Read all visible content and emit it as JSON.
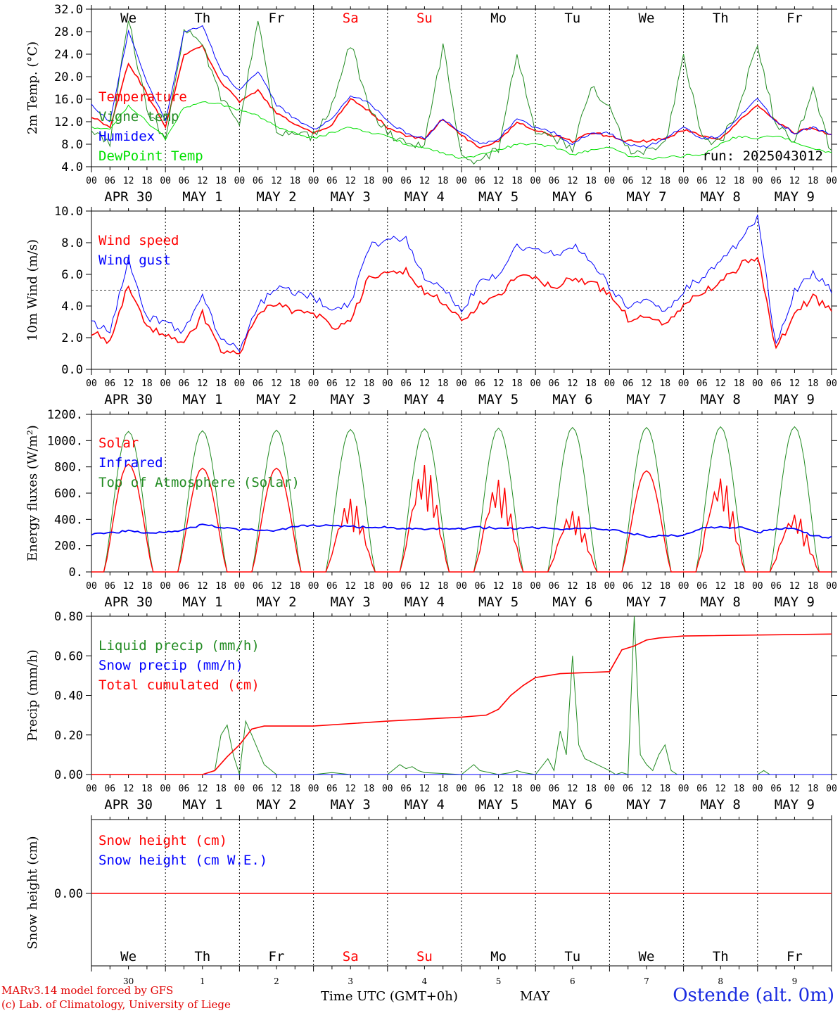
{
  "chart_data": [
    {
      "type": "line",
      "ylabel": "2m Temp. (°C)",
      "ylim": [
        4.0,
        32.0
      ],
      "yticks": [
        "4.0",
        "8.0",
        "12.0",
        "16.0",
        "20.0",
        "24.0",
        "28.0",
        "32.0"
      ],
      "run_label": "run: 2025043012",
      "x_hours": [
        0,
        6,
        12,
        18,
        24,
        30,
        36,
        42,
        48,
        54,
        60,
        66,
        72,
        78,
        84,
        90,
        96,
        102,
        108,
        114,
        120,
        126,
        132,
        138,
        144,
        150,
        156,
        162,
        168,
        174,
        180,
        186,
        192,
        198,
        204,
        210,
        216,
        222,
        228,
        234,
        240
      ],
      "series": [
        {
          "name": "Temperature",
          "color": "#ff0000",
          "values": [
            13.0,
            11.0,
            22.5,
            17.0,
            11.0,
            24.0,
            25.5,
            19.0,
            15.5,
            17.5,
            13.5,
            11.5,
            10.0,
            11.5,
            16.0,
            14.0,
            11.0,
            9.5,
            9.0,
            12.5,
            9.5,
            7.5,
            8.5,
            12.0,
            10.5,
            9.5,
            8.5,
            10.0,
            9.5,
            8.5,
            8.5,
            9.0,
            10.5,
            9.5,
            9.0,
            12.0,
            15.0,
            12.0,
            10.0,
            11.0,
            9.5
          ]
        },
        {
          "name": "Vigne temp",
          "color": "#228b22",
          "values": [
            10.0,
            8.5,
            30.0,
            14.0,
            9.0,
            28.0,
            26.0,
            16.0,
            12.0,
            30.0,
            10.0,
            9.5,
            9.5,
            15.0,
            26.0,
            14.0,
            10.0,
            8.5,
            8.0,
            25.5,
            6.0,
            5.0,
            7.0,
            24.0,
            10.0,
            9.0,
            7.5,
            18.0,
            15.0,
            7.0,
            6.5,
            8.0,
            24.0,
            9.0,
            8.0,
            15.0,
            26.0,
            11.0,
            8.5,
            18.0,
            6.0
          ]
        },
        {
          "name": "Humidex",
          "color": "#0000ff",
          "values": [
            15.0,
            12.0,
            28.0,
            19.0,
            12.0,
            28.0,
            29.0,
            21.0,
            17.5,
            21.0,
            15.0,
            12.5,
            10.5,
            12.5,
            16.5,
            15.5,
            12.0,
            10.0,
            9.0,
            12.5,
            10.0,
            8.0,
            9.0,
            12.5,
            11.0,
            10.0,
            8.0,
            10.0,
            10.0,
            8.0,
            7.5,
            9.0,
            11.0,
            9.0,
            9.5,
            13.0,
            16.0,
            12.0,
            10.0,
            11.0,
            9.5
          ]
        },
        {
          "name": "DewPoint Temp",
          "color": "#00e000",
          "values": [
            11.0,
            10.5,
            15.0,
            12.0,
            9.0,
            14.5,
            15.5,
            15.0,
            14.0,
            13.0,
            11.0,
            10.0,
            9.0,
            10.0,
            11.0,
            10.0,
            9.5,
            8.0,
            7.5,
            6.5,
            5.5,
            6.0,
            7.0,
            8.0,
            8.0,
            7.5,
            6.0,
            7.0,
            7.5,
            6.0,
            5.5,
            5.5,
            6.0,
            6.0,
            8.0,
            9.5,
            9.0,
            9.5,
            8.5,
            7.0,
            6.5
          ]
        }
      ]
    },
    {
      "type": "line",
      "ylabel": "10m Wind (m/s)",
      "ylim": [
        0.0,
        10.0
      ],
      "yticks": [
        "0.0",
        "2.0",
        "4.0",
        "6.0",
        "8.0",
        "10.0"
      ],
      "reference_line": 5.0,
      "x_hours": [
        0,
        6,
        12,
        18,
        24,
        30,
        36,
        42,
        48,
        54,
        60,
        66,
        72,
        78,
        84,
        90,
        96,
        102,
        108,
        114,
        120,
        126,
        132,
        138,
        144,
        150,
        156,
        162,
        168,
        174,
        180,
        186,
        192,
        198,
        204,
        210,
        216,
        222,
        228,
        234,
        240
      ],
      "series": [
        {
          "name": "Wind speed",
          "color": "#ff0000",
          "values": [
            2.4,
            1.6,
            5.4,
            2.6,
            2.2,
            1.5,
            3.5,
            1.2,
            0.9,
            3.5,
            4.2,
            3.5,
            3.6,
            2.6,
            3.1,
            5.8,
            6.0,
            6.2,
            4.8,
            4.3,
            3.0,
            4.2,
            4.6,
            5.8,
            5.7,
            5.2,
            5.8,
            5.5,
            4.8,
            3.2,
            3.4,
            2.9,
            4.0,
            4.8,
            5.5,
            6.5,
            7.2,
            1.2,
            3.6,
            4.5,
            3.8
          ]
        },
        {
          "name": "Wind gust",
          "color": "#0000ff",
          "values": [
            3.1,
            2.3,
            7.0,
            3.3,
            2.9,
            2.4,
            4.6,
            1.9,
            1.2,
            4.0,
            5.2,
            4.8,
            4.6,
            3.6,
            4.2,
            7.8,
            8.2,
            8.3,
            5.7,
            5.2,
            3.6,
            5.5,
            6.0,
            7.8,
            7.6,
            7.2,
            7.8,
            7.0,
            5.2,
            4.0,
            4.3,
            3.6,
            5.0,
            5.8,
            6.8,
            8.0,
            9.6,
            1.5,
            5.0,
            6.0,
            5.0
          ]
        }
      ]
    },
    {
      "type": "line",
      "ylabel": "Energy fluxes (W/m²)",
      "ylim": [
        0,
        1200
      ],
      "yticks": [
        "0.",
        "200.",
        "400.",
        "600.",
        "800.",
        "1000.",
        "1200."
      ],
      "series": [
        {
          "name": "Solar",
          "color": "#ff0000",
          "daily_peak": [
            820,
            790,
            790,
            560,
            820,
            710,
            470,
            770,
            730,
            450
          ]
        },
        {
          "name": "Infrared",
          "color": "#0000ff",
          "values": [
            290,
            300,
            310,
            300,
            305,
            320,
            360,
            340,
            320,
            320,
            310,
            350,
            350,
            355,
            345,
            340,
            340,
            330,
            320,
            330,
            330,
            340,
            330,
            330,
            340,
            325,
            330,
            330,
            320,
            300,
            270,
            275,
            280,
            330,
            340,
            340,
            300,
            330,
            335,
            270,
            265
          ]
        },
        {
          "name": "Top of Atmosphere (Solar)",
          "color": "#228b22",
          "daily_peak": [
            1070,
            1075,
            1080,
            1085,
            1090,
            1095,
            1100,
            1100,
            1105,
            1105
          ]
        }
      ]
    },
    {
      "type": "line",
      "ylabel": "Precip (mm/h)",
      "ylim": [
        0.0,
        0.8
      ],
      "yticks": [
        "0.00",
        "0.20",
        "0.40",
        "0.60",
        "0.80"
      ],
      "series": [
        {
          "name": "Liquid precip (mm/h)",
          "color": "#228b22",
          "points": [
            [
              0,
              0
            ],
            [
              36,
              0
            ],
            [
              40,
              0.02
            ],
            [
              42,
              0.2
            ],
            [
              44,
              0.25
            ],
            [
              46,
              0.1
            ],
            [
              48,
              0.0
            ],
            [
              50,
              0.27
            ],
            [
              52,
              0.2
            ],
            [
              56,
              0.05
            ],
            [
              60,
              0
            ],
            [
              72,
              0
            ],
            [
              78,
              0.01
            ],
            [
              84,
              0
            ],
            [
              96,
              0
            ],
            [
              100,
              0.05
            ],
            [
              102,
              0.03
            ],
            [
              104,
              0.04
            ],
            [
              106,
              0.02
            ],
            [
              108,
              0.01
            ],
            [
              120,
              0
            ],
            [
              124,
              0.05
            ],
            [
              126,
              0.02
            ],
            [
              132,
              0
            ],
            [
              136,
              0.01
            ],
            [
              138,
              0.02
            ],
            [
              140,
              0.01
            ],
            [
              144,
              0
            ],
            [
              148,
              0.08
            ],
            [
              150,
              0.02
            ],
            [
              152,
              0.22
            ],
            [
              154,
              0.1
            ],
            [
              156,
              0.6
            ],
            [
              158,
              0.15
            ],
            [
              160,
              0.08
            ],
            [
              164,
              0.05
            ],
            [
              168,
              0.02
            ],
            [
              170,
              0
            ],
            [
              172,
              0.01
            ],
            [
              174,
              0.0
            ],
            [
              176,
              0.8
            ],
            [
              177,
              0.45
            ],
            [
              178,
              0.1
            ],
            [
              180,
              0.05
            ],
            [
              182,
              0.02
            ],
            [
              184,
              0.1
            ],
            [
              186,
              0.15
            ],
            [
              188,
              0.02
            ],
            [
              190,
              0.0
            ],
            [
              216,
              0
            ],
            [
              218,
              0.02
            ],
            [
              220,
              0
            ],
            [
              240,
              0
            ]
          ]
        },
        {
          "name": "Snow precip (mm/h)",
          "color": "#0000ff",
          "points": [
            [
              0,
              0
            ],
            [
              240,
              0
            ]
          ]
        },
        {
          "name": "Total cumulated (cm)",
          "color": "#ff0000",
          "points": [
            [
              0,
              0
            ],
            [
              36,
              0
            ],
            [
              40,
              0.02
            ],
            [
              44,
              0.09
            ],
            [
              48,
              0.15
            ],
            [
              52,
              0.23
            ],
            [
              56,
              0.245
            ],
            [
              72,
              0.245
            ],
            [
              96,
              0.27
            ],
            [
              120,
              0.29
            ],
            [
              124,
              0.295
            ],
            [
              128,
              0.3
            ],
            [
              132,
              0.33
            ],
            [
              136,
              0.4
            ],
            [
              140,
              0.45
            ],
            [
              144,
              0.49
            ],
            [
              152,
              0.51
            ],
            [
              168,
              0.52
            ],
            [
              172,
              0.63
            ],
            [
              176,
              0.65
            ],
            [
              180,
              0.68
            ],
            [
              184,
              0.69
            ],
            [
              192,
              0.7
            ],
            [
              240,
              0.71
            ]
          ]
        }
      ]
    },
    {
      "type": "line",
      "ylabel": "Snow height (cm)",
      "yticks": [
        "0.00"
      ],
      "series": [
        {
          "name": "Snow height (cm)",
          "color": "#ff0000",
          "values": [
            0,
            0
          ]
        },
        {
          "name": "Snow height (cm W.E.)",
          "color": "#0000ff",
          "values": [
            0,
            0
          ]
        }
      ]
    }
  ],
  "x_axis": {
    "hour_ticks": [
      "00",
      "06",
      "12",
      "18"
    ],
    "date_labels": [
      "APR 30",
      "MAY  1",
      "MAY  2",
      "MAY  3",
      "MAY  4",
      "MAY  5",
      "MAY  6",
      "MAY  7",
      "MAY  8",
      "MAY  9"
    ],
    "day_names": [
      "We",
      "Th",
      "Fr",
      "Sa",
      "Su",
      "Mo",
      "Tu",
      "We",
      "Th",
      "Fr"
    ],
    "weekend_color": "#ff0000",
    "bottom_day_numbers": [
      "30",
      "1",
      "2",
      "3",
      "4",
      "5",
      "6",
      "7",
      "8",
      "9"
    ],
    "bottom_month": "MAY",
    "title": "Time UTC (GMT+0h)"
  },
  "footer": {
    "credit_line1": "MARv3.14 model forced by GFS",
    "credit_line2": "(c) Lab. of Climatology, University of Liege",
    "station": "Ostende (alt. 0m)"
  }
}
